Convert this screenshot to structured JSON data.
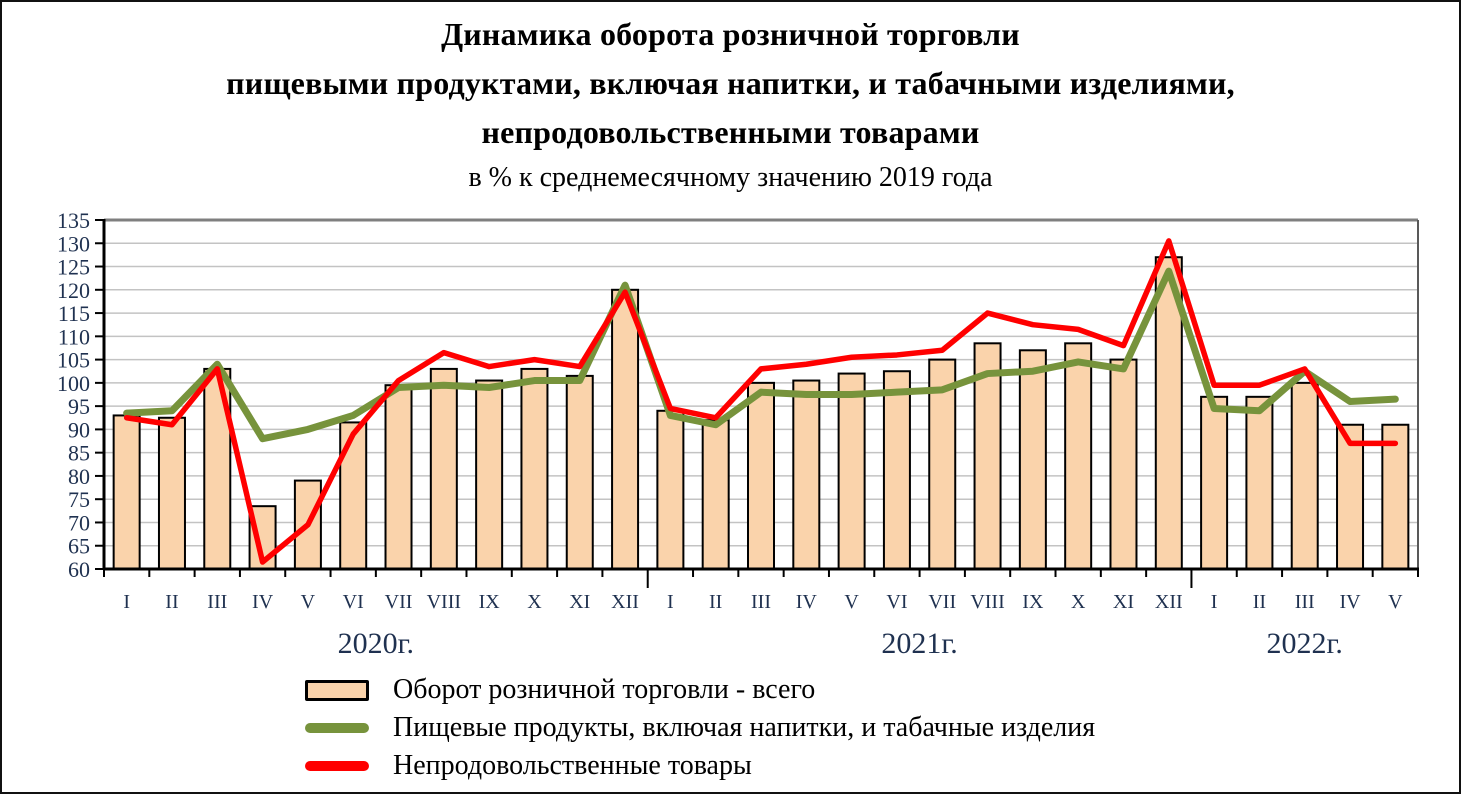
{
  "title": {
    "line1": "Динамика оборота розничной торговли",
    "line2": "пищевыми продуктами, включая напитки, и табачными изделиями,",
    "line3": "непродовольственными товарами",
    "subtitle": "в % к среднемесячному значению 2019 года"
  },
  "chart_data": {
    "type": "combo-bar-line",
    "title": "Динамика оборота розничной торговли",
    "ylabel": "% к среднемесячному значению 2019 года",
    "ylim": [
      60,
      135
    ],
    "ytick_step": 5,
    "grid": true,
    "legend_position": "bottom-left",
    "categories": [
      "I",
      "II",
      "III",
      "IV",
      "V",
      "VI",
      "VII",
      "VIII",
      "IX",
      "X",
      "XI",
      "XII",
      "I",
      "II",
      "III",
      "IV",
      "V",
      "VI",
      "VII",
      "VIII",
      "IX",
      "X",
      "XI",
      "XII",
      "I",
      "II",
      "III",
      "IV",
      "V"
    ],
    "year_groups": [
      {
        "label": "2020г.",
        "start": 0,
        "count": 12
      },
      {
        "label": "2021г.",
        "start": 12,
        "count": 12
      },
      {
        "label": "2022г.",
        "start": 24,
        "count": 5
      }
    ],
    "series": [
      {
        "name": "Оборот розничной торговли - всего",
        "type": "bar",
        "color": "#FAD3AB",
        "border_color": "#000000",
        "values": [
          93,
          92.5,
          103,
          73.5,
          79,
          91.5,
          99.5,
          103,
          100.5,
          103,
          101.5,
          120,
          94,
          92,
          100,
          100.5,
          102,
          102.5,
          105,
          108.5,
          107,
          108.5,
          105,
          127,
          97,
          97,
          100,
          91,
          91
        ]
      },
      {
        "name": "Пищевые продукты, включая напитки,  и табачные изделия",
        "type": "line",
        "color": "#77933C",
        "values": [
          93.5,
          94,
          104,
          88,
          90,
          93,
          99,
          99.5,
          99,
          100.5,
          100.5,
          121,
          93,
          91,
          98,
          97.5,
          97.5,
          98,
          98.5,
          102,
          102.5,
          104.5,
          103,
          124,
          94.5,
          94,
          102.5,
          96,
          96.5
        ]
      },
      {
        "name": "Непродовольственные товары",
        "type": "line",
        "color": "#FF0000",
        "values": [
          92.5,
          91,
          103,
          61.5,
          69.5,
          89,
          100.5,
          106.5,
          103.5,
          105,
          103.5,
          119.5,
          94.5,
          92.5,
          103,
          104,
          105.5,
          106,
          107,
          115,
          112.5,
          111.5,
          108,
          130.5,
          99.5,
          99.5,
          103,
          87,
          87
        ]
      }
    ]
  },
  "colors": {
    "bar_fill": "#FAD3AB",
    "bar_border": "#000000",
    "line_food": "#77933C",
    "line_nonfood": "#FF0000",
    "gridline": "#C3C3C3",
    "axis": "#000000",
    "plot_border_top": "#7F7F7F",
    "plot_border_right": "#595959",
    "axis_text": "#1F3150",
    "frame_border": "#111111"
  }
}
